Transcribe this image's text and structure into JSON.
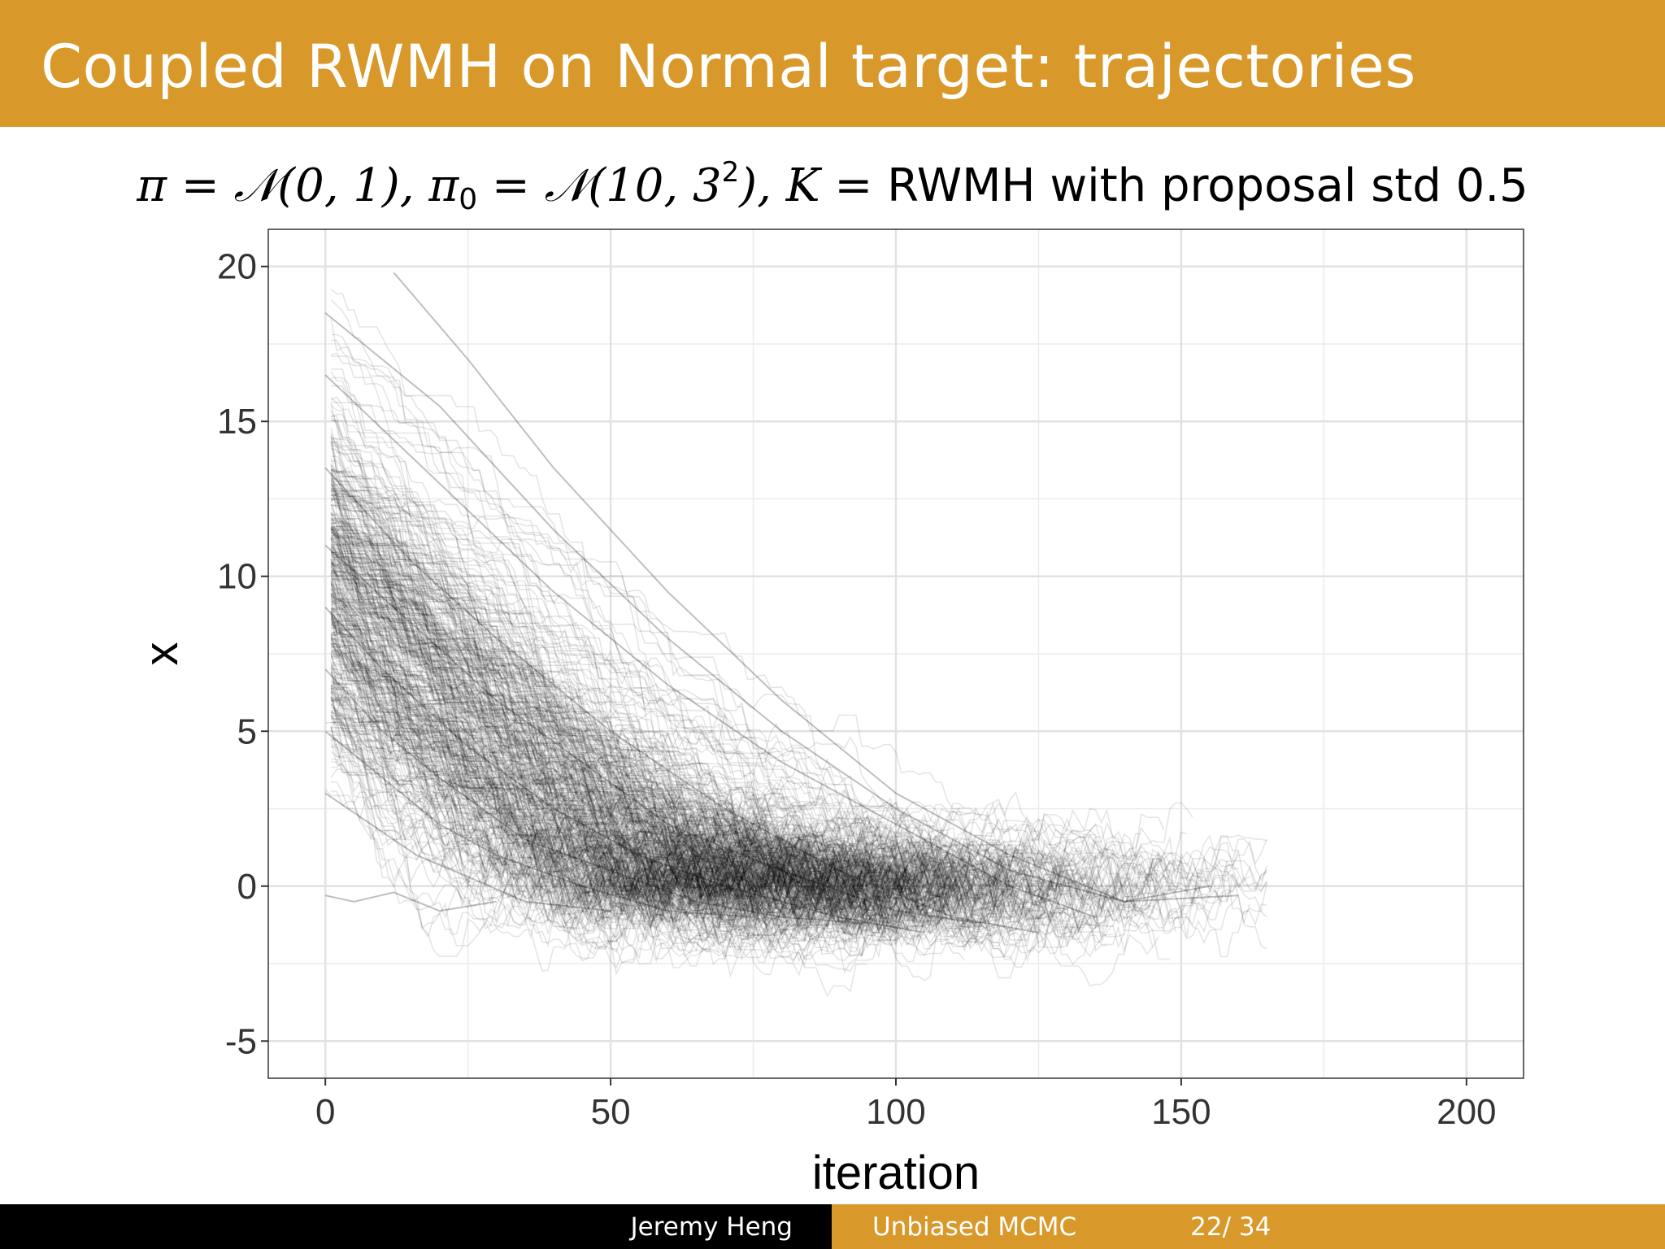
{
  "slide": {
    "title": "Coupled RWMH on Normal target: trajectories",
    "subtitle": {
      "pi": "π",
      "eq1": " = ",
      "N1": "𝒩(0, 1), ",
      "pi0": "π",
      "pi0_sub": "0",
      "eq2": " = ",
      "N2": "𝒩(10, 3",
      "N2_sup": "2",
      "N2_close": "), ",
      "K": "K",
      "eq3": " = ",
      "tail": "RWMH with proposal std 0.5"
    }
  },
  "footer": {
    "author": "Jeremy Heng",
    "talk": "Unbiased MCMC",
    "page": "22/ 34"
  },
  "colors": {
    "header_bg": "#d8982a",
    "footer_left_bg": "#000000",
    "trajectory": "#000000",
    "grid": "#ebebeb"
  },
  "chart_data": {
    "type": "line",
    "xlabel": "iteration",
    "ylabel": "x",
    "xlim": [
      -10,
      210
    ],
    "ylim": [
      -6.2,
      21.2
    ],
    "xticks": [
      0,
      50,
      100,
      150,
      200
    ],
    "yticks": [
      -5,
      0,
      5,
      10,
      15,
      20
    ],
    "xtick_labels": [
      "0",
      "50",
      "100",
      "150",
      "200"
    ],
    "ytick_labels": [
      "-5",
      "0",
      "5",
      "10",
      "15",
      "20"
    ],
    "grid": true,
    "legend": "none",
    "description": "many semi-transparent trajectories starting near N(10, 9) at iteration 0 and converging to about 0; the longest meet around iteration 160",
    "series": [
      {
        "x": [
          0,
          20,
          40,
          60,
          80,
          100,
          120,
          140,
          160
        ],
        "y": [
          18.5,
          15.5,
          11.5,
          8,
          5,
          2.5,
          0.5,
          -0.5,
          -0.3
        ]
      },
      {
        "x": [
          12,
          25,
          40,
          60,
          80,
          100,
          120,
          140,
          155
        ],
        "y": [
          19.8,
          17,
          13.5,
          9.5,
          6,
          3,
          1,
          -0.5,
          0
        ]
      },
      {
        "x": [
          0,
          20,
          40,
          60,
          80,
          100,
          120,
          135
        ],
        "y": [
          16.5,
          13,
          9.5,
          6.5,
          4,
          2,
          0,
          -1
        ]
      },
      {
        "x": [
          0,
          15,
          30,
          50,
          70,
          90,
          110,
          125
        ],
        "y": [
          13.5,
          10.5,
          8,
          5,
          2.5,
          0.5,
          -1,
          -1.5
        ]
      },
      {
        "x": [
          0,
          15,
          30,
          45,
          60,
          80,
          100,
          115
        ],
        "y": [
          11,
          8.5,
          6,
          4,
          2,
          0.5,
          -0.8,
          -1.2
        ]
      },
      {
        "x": [
          0,
          10,
          25,
          40,
          55,
          70,
          90,
          105
        ],
        "y": [
          9,
          7,
          4.5,
          2.5,
          1,
          0,
          -1,
          -1.5
        ]
      },
      {
        "x": [
          0,
          10,
          20,
          35,
          50,
          65,
          80,
          95
        ],
        "y": [
          7,
          5,
          3.5,
          1.5,
          0.5,
          -0.5,
          -1,
          -1.2
        ]
      },
      {
        "x": [
          0,
          10,
          20,
          30,
          45,
          60,
          75
        ],
        "y": [
          5,
          3.5,
          2,
          1,
          0,
          -0.8,
          -1
        ]
      },
      {
        "x": [
          0,
          8,
          16,
          25,
          35,
          50
        ],
        "y": [
          3,
          2,
          1,
          0.3,
          -0.5,
          -0.8
        ]
      },
      {
        "x": [
          0,
          5,
          12,
          20,
          30
        ],
        "y": [
          -0.3,
          -0.5,
          -0.2,
          -0.8,
          -0.5
        ]
      }
    ]
  }
}
